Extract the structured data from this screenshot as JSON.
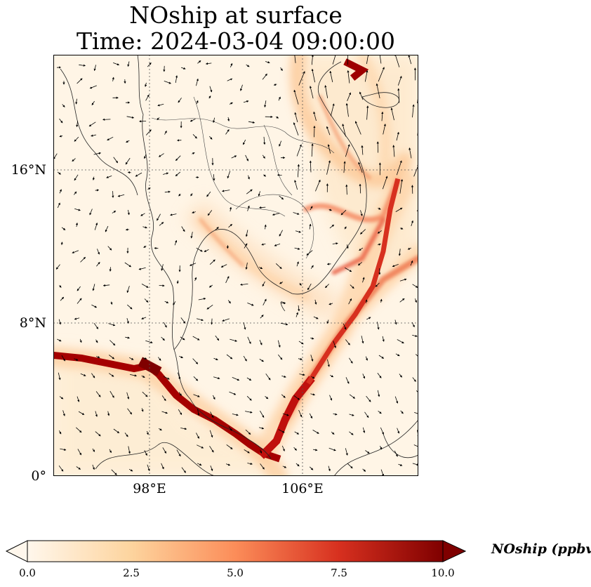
{
  "title": {
    "line1": "NOship at surface",
    "line2": "Time: 2024-03-04 09:00:00"
  },
  "map": {
    "projection": "PlateCarree",
    "lon_range": [
      93,
      112
    ],
    "lat_range": [
      0,
      22
    ],
    "variable": "NOship",
    "level": "surface",
    "y_ticks": [
      {
        "lat": 16,
        "label": "16°N"
      },
      {
        "lat": 8,
        "label": "8°N"
      },
      {
        "lat": 0,
        "label": "0°"
      }
    ],
    "x_ticks": [
      {
        "lon": 98,
        "label": "98°E"
      },
      {
        "lon": 106,
        "label": "106°E"
      }
    ],
    "gridlines": "dotted",
    "features": [
      "coastlines",
      "country-borders",
      "wind-vectors"
    ]
  },
  "colorbar": {
    "colormap": "OrRd",
    "label": "NOship (ppbv)",
    "min": 0.0,
    "max": 10.0,
    "extend": "both",
    "ticks": [
      "0.0",
      "2.5",
      "5.0",
      "7.5",
      "10.0"
    ],
    "colors": [
      "#fff7ec",
      "#fdd49e",
      "#fc8d59",
      "#d7301f",
      "#7f0000"
    ]
  }
}
